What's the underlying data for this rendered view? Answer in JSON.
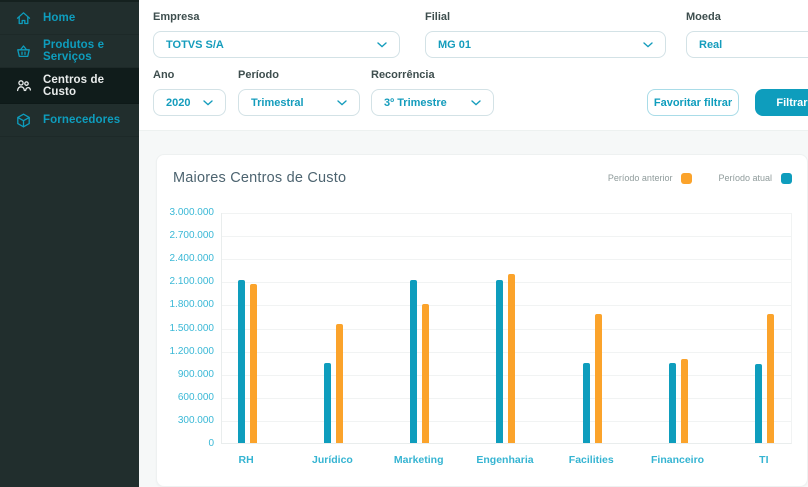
{
  "sidebar": {
    "items": [
      {
        "id": "home",
        "label": "Home",
        "icon": "home-icon",
        "selected": false
      },
      {
        "id": "produtos-e-servicos",
        "label": "Produtos e Serviços",
        "icon": "basket-icon",
        "selected": false
      },
      {
        "id": "centros-de-custo",
        "label": "Centros de Custo",
        "icon": "people-icon",
        "selected": true
      },
      {
        "id": "fornecedores",
        "label": "Fornecedores",
        "icon": "cube-icon",
        "selected": false
      }
    ]
  },
  "filters": {
    "fields_row1": [
      {
        "id": "empresa",
        "label": "Empresa",
        "value": "TOTVS S/A"
      },
      {
        "id": "filial",
        "label": "Filial",
        "value": "MG 01"
      },
      {
        "id": "moeda",
        "label": "Moeda",
        "value": "Real"
      }
    ],
    "fields_row2": [
      {
        "id": "ano",
        "label": "Ano",
        "value": "2020"
      },
      {
        "id": "periodo",
        "label": "Período",
        "value": "Trimestral"
      },
      {
        "id": "recorrencia",
        "label": "Recorrência",
        "value": "3º Trimestre"
      }
    ],
    "buttons": {
      "favorite": "Favoritar filtrar",
      "apply": "Filtrar"
    }
  },
  "chart_data": {
    "type": "bar",
    "title": "Maiores Centros de Custo",
    "categories": [
      "RH",
      "Jurídico",
      "Marketing",
      "Engenharia",
      "Facilities",
      "Financeiro",
      "TI"
    ],
    "series": [
      {
        "name": "Período atual",
        "color": "#0e9dbd",
        "values": [
          2120000,
          1040000,
          2120000,
          2120000,
          1040000,
          1040000,
          1030000
        ]
      },
      {
        "name": "Período anterior",
        "color": "#fba32b",
        "values": [
          2060000,
          1540000,
          1810000,
          2190000,
          1680000,
          1090000,
          1680000
        ]
      }
    ],
    "legend": [
      {
        "label": "Período anterior",
        "color": "#fba32b"
      },
      {
        "label": "Período atual",
        "color": "#0e9dbd"
      }
    ],
    "ylim": [
      0,
      3000000
    ],
    "ytick_step": 300000,
    "ytick_labels": [
      "3.000.000",
      "2.700.000",
      "2.400.000",
      "2.100.000",
      "1.800.000",
      "1.500.000",
      "1.200.000",
      "900.000",
      "600.000",
      "300.000",
      "0"
    ],
    "grid": true,
    "legend_position": "top-right",
    "xlabel": "",
    "ylabel": ""
  },
  "colors": {
    "accent": "#0e9dbd",
    "orange": "#fba32b",
    "axis_label": "#3ab8d6"
  }
}
